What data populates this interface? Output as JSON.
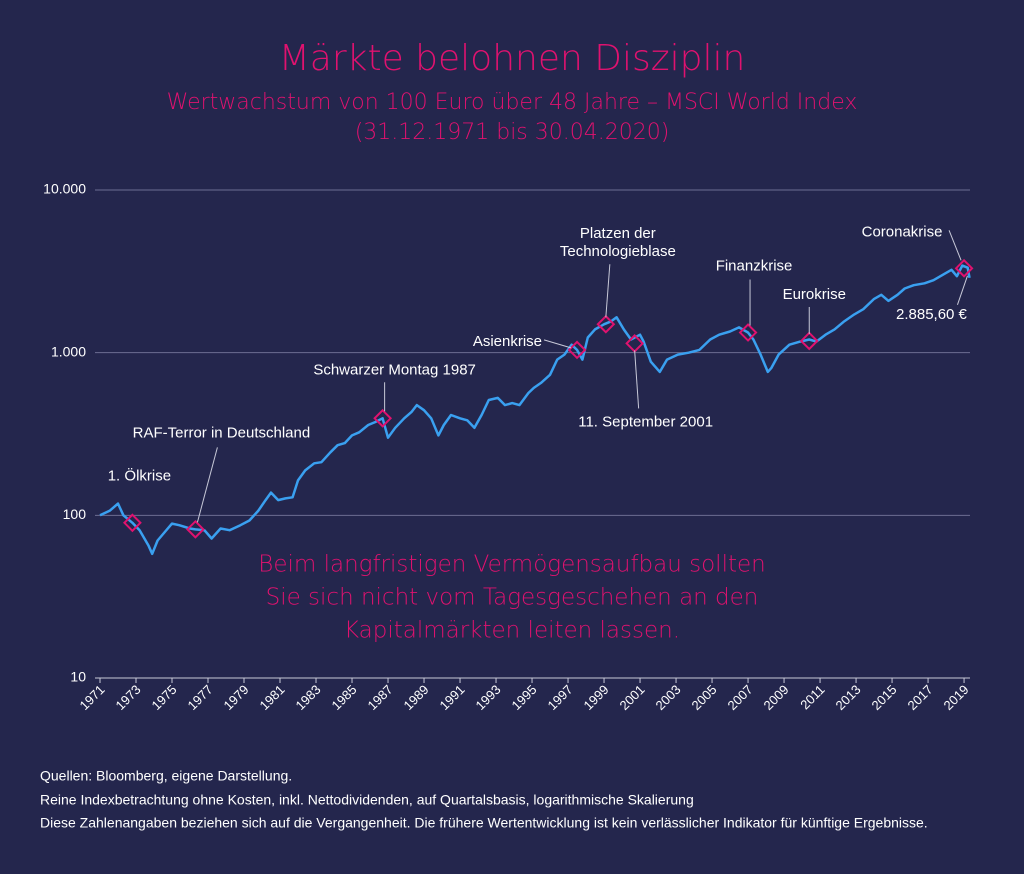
{
  "chart_data": {
    "type": "line",
    "title": "Märkte belohnen Disziplin",
    "subtitle": [
      "Wertwachstum von 100 Euro über 48 Jahre – MSCI World Index",
      "(31.12.1971 bis 30.04.2020)"
    ],
    "log_scale": true,
    "grid": true,
    "xlim": [
      1971,
      2019.33
    ],
    "xticks": [
      1971,
      1973,
      1975,
      1977,
      1979,
      1981,
      1983,
      1985,
      1987,
      1989,
      1991,
      1993,
      1995,
      1997,
      1999,
      2001,
      2003,
      2005,
      2007,
      2009,
      2011,
      2013,
      2015,
      2017,
      2019
    ],
    "ylim": [
      10,
      10000
    ],
    "yticks": [
      10,
      100,
      {
        "value": 1000,
        "label": "1.000"
      },
      {
        "value": 10000,
        "label": "10.000"
      }
    ],
    "series": [
      {
        "color": "#3aa0f0",
        "x": [
          1971.0,
          1971.55,
          1972.0,
          1972.3,
          1972.8,
          1973.2,
          1973.7,
          1973.9,
          1974.2,
          1974.6,
          1975.0,
          1975.4,
          1976.0,
          1976.3,
          1976.8,
          1977.2,
          1977.7,
          1978.2,
          1978.8,
          1979.3,
          1979.8,
          1980.2,
          1980.5,
          1980.9,
          1981.3,
          1981.7,
          1982.0,
          1982.4,
          1982.9,
          1983.3,
          1983.8,
          1984.2,
          1984.6,
          1985.0,
          1985.4,
          1985.9,
          1986.3,
          1986.7,
          1987.0,
          1987.4,
          1987.9,
          1988.3,
          1988.6,
          1989.0,
          1989.4,
          1989.8,
          1990.1,
          1990.5,
          1991.0,
          1991.4,
          1991.8,
          1992.2,
          1992.6,
          1993.1,
          1993.5,
          1993.9,
          1994.3,
          1994.8,
          1995.1,
          1995.5,
          1996.0,
          1996.4,
          1996.8,
          1997.2,
          1997.5,
          1997.8,
          1998.1,
          1998.5,
          1999.0,
          1999.4,
          1999.7,
          2000.1,
          2000.5,
          2001.0,
          2001.2,
          2001.6,
          2002.1,
          2002.5,
          2003.1,
          2003.7,
          2004.3,
          2004.9,
          2005.4,
          2006.0,
          2006.5,
          2007.0,
          2007.3,
          2007.7,
          2008.1,
          2008.3,
          2008.7,
          2009.3,
          2009.9,
          2010.4,
          2010.8,
          2011.3,
          2011.8,
          2012.3,
          2012.9,
          2013.4,
          2014.0,
          2014.4,
          2014.8,
          2015.3,
          2015.7,
          2016.2,
          2016.8,
          2017.3,
          2017.9,
          2018.3,
          2018.6,
          2018.9,
          2019.2,
          2019.3
        ],
        "values": [
          100,
          107,
          118,
          100,
          90,
          81,
          65,
          58,
          70,
          79,
          89,
          87,
          83,
          82,
          81,
          72,
          83,
          81,
          87,
          93,
          107,
          124,
          138,
          124,
          127,
          129,
          164,
          189,
          209,
          212,
          244,
          270,
          278,
          310,
          324,
          359,
          375,
          395,
          300,
          345,
          395,
          431,
          476,
          443,
          395,
          310,
          359,
          414,
          395,
          384,
          345,
          414,
          512,
          527,
          476,
          490,
          476,
          565,
          607,
          652,
          731,
          906,
          973,
          1120,
          1040,
          906,
          1240,
          1390,
          1495,
          1560,
          1650,
          1390,
          1205,
          1290,
          1170,
          880,
          762,
          906,
          973,
          1000,
          1040,
          1205,
          1290,
          1350,
          1430,
          1330,
          1205,
          973,
          762,
          806,
          973,
          1120,
          1170,
          1205,
          1170,
          1290,
          1390,
          1545,
          1720,
          1850,
          2140,
          2270,
          2080,
          2270,
          2480,
          2600,
          2670,
          2790,
          3050,
          3230,
          2950,
          3430,
          3330,
          2885.6
        ]
      }
    ],
    "annotations": [
      {
        "text": "1. Ölkrise",
        "x": 1972.8,
        "y": 90
      },
      {
        "text": "RAF-Terror in Deutschland",
        "x": 1976.3,
        "y": 82
      },
      {
        "text": "Schwarzer Montag 1987",
        "x": 1986.7,
        "y": 395
      },
      {
        "text": "Asienkrise",
        "x": 1997.5,
        "y": 1040
      },
      {
        "text": [
          "Platzen der",
          "Technologieblase"
        ],
        "x": 1999.1,
        "y": 1495
      },
      {
        "text": "11. September 2001",
        "x": 2000.7,
        "y": 1140
      },
      {
        "text": "Finanzkrise",
        "x": 2007.0,
        "y": 1330
      },
      {
        "text": "Eurokrise",
        "x": 2010.4,
        "y": 1180
      },
      {
        "text": "Coronakrise",
        "x": 2019.0,
        "y": 3300
      },
      {
        "text": "2.885,60  €",
        "x": 2019.3,
        "y": 2885.6
      }
    ],
    "callout": [
      "Beim langfristigen Vermögensaufbau sollten",
      "Sie sich nicht vom Tagesgeschehen an den",
      "Kapitalmärkten leiten lassen."
    ],
    "footer": [
      "Quellen: Bloomberg, eigene Darstellung.",
      "Reine Indexbetrachtung ohne Kosten, inkl. Nettodividenden, auf Quartalsbasis, logarithmische Skalierung",
      "Diese Zahlenangaben beziehen sich auf die Vergangenheit. Die frühere Wertentwicklung ist kein verlässlicher Indikator für künftige Ergebnisse."
    ]
  }
}
